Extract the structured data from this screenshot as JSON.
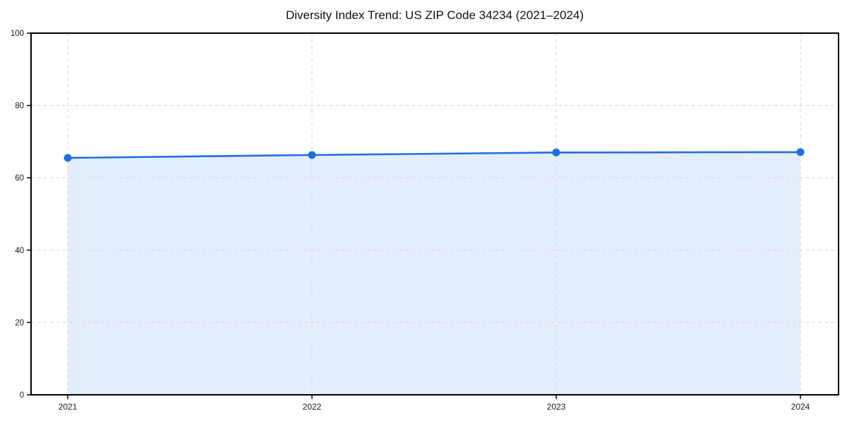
{
  "chart_data": {
    "type": "line",
    "title": "Diversity Index Trend: US ZIP Code 34234 (2021–2024)",
    "x": [
      2021,
      2022,
      2023,
      2024
    ],
    "xtick_labels": [
      "2021",
      "2022",
      "2023",
      "2024"
    ],
    "series": [
      {
        "name": "Diversity Index",
        "values": [
          65.5,
          66.3,
          67.0,
          67.1
        ]
      }
    ],
    "xlabel": "",
    "ylabel": "",
    "ylim": [
      0,
      100
    ],
    "yticks": [
      0,
      20,
      40,
      60,
      80,
      100
    ],
    "grid": true,
    "grid_style": "dashed",
    "legend_position": "none",
    "area_fill": true,
    "markers": true,
    "colors": {
      "line": "#1f6fe0",
      "marker": "#1f6fe0",
      "fill": "#1f6fe0",
      "fill_opacity": 0.12,
      "grid": "#d9d9d9",
      "spine": "#000000",
      "title_text": "#111111",
      "tick_text": "#1a1a1a",
      "background": "#ffffff"
    }
  }
}
